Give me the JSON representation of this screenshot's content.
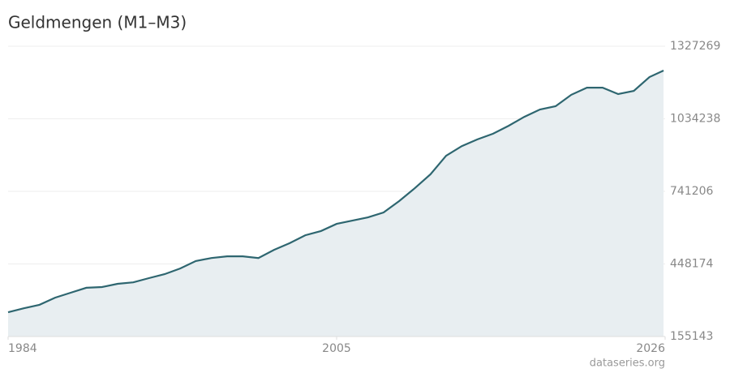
{
  "chart_data": {
    "type": "area",
    "title": "Geldmengen (M1–M3)",
    "source": "dataseries.org",
    "x": [
      1984,
      1985,
      1986,
      1987,
      1988,
      1989,
      1990,
      1991,
      1992,
      1993,
      1994,
      1995,
      1996,
      1997,
      1998,
      1999,
      2000,
      2001,
      2002,
      2003,
      2004,
      2005,
      2006,
      2007,
      2008,
      2009,
      2010,
      2011,
      2012,
      2013,
      2014,
      2015,
      2016,
      2017,
      2018,
      2019,
      2020,
      2021,
      2022,
      2023,
      2024,
      2025,
      2025.9
    ],
    "values": [
      253000,
      269000,
      283000,
      312000,
      332000,
      352000,
      355000,
      368000,
      374000,
      391000,
      407000,
      430000,
      460000,
      472000,
      479000,
      479000,
      472000,
      505000,
      532000,
      564000,
      581000,
      610000,
      623000,
      636000,
      656000,
      702000,
      754000,
      810000,
      885000,
      924000,
      951000,
      974000,
      1006000,
      1042000,
      1072000,
      1085000,
      1131000,
      1160000,
      1160000,
      1134000,
      1147000,
      1203000,
      1229000
    ],
    "color": "#2e6670",
    "fill": "#e8eef1",
    "xlim": [
      1984,
      2026
    ],
    "xticks": [
      1984,
      2005,
      2026
    ],
    "ylim": [
      155143,
      1327269
    ],
    "yticks": [
      155143,
      448174,
      741206,
      1034238,
      1327269
    ],
    "grid": true
  }
}
